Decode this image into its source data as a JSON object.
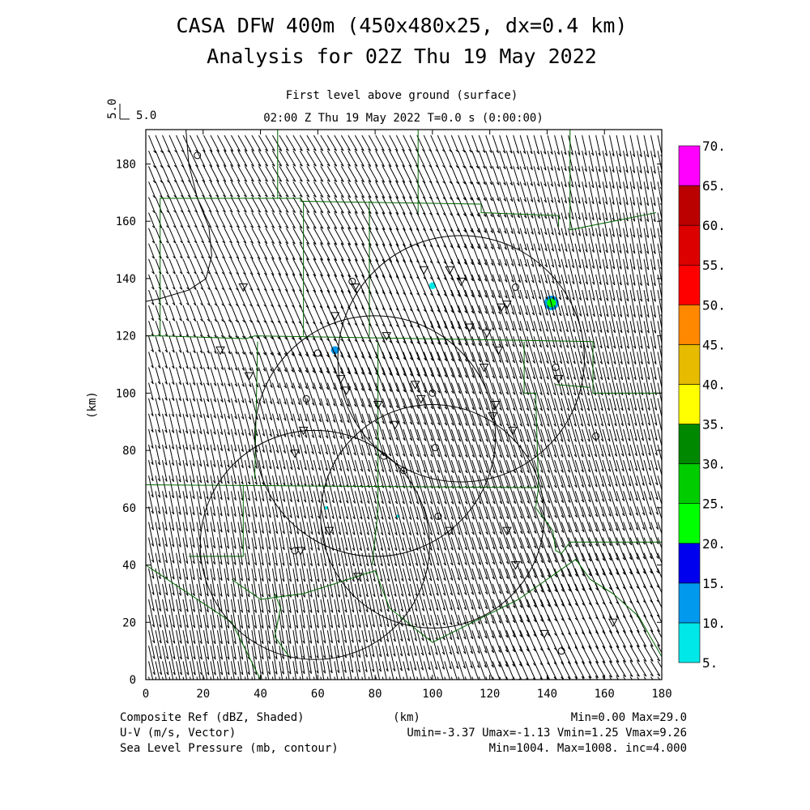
{
  "title": {
    "line1": "CASA DFW 400m (450x480x25, dx=0.4 km)",
    "line2": "Analysis for 02Z Thu 19 May 2022",
    "subtitle": "First level above ground (surface)",
    "time_label": "02:00 Z Thu 19 May 2022   T=0.0 s (0:00:00)"
  },
  "vector_key": {
    "label": "5.0",
    "value": 5.0
  },
  "axes": {
    "xlabel": "(km)",
    "ylabel": "(km)",
    "xlim": [
      0,
      180
    ],
    "ylim": [
      0,
      192
    ],
    "xticks": [
      0,
      20,
      40,
      60,
      80,
      100,
      120,
      140,
      160,
      180
    ],
    "yticks": [
      0,
      20,
      40,
      60,
      80,
      100,
      120,
      140,
      160,
      180
    ]
  },
  "colorbar": {
    "levels": [
      "5.",
      "10.",
      "15.",
      "20.",
      "25.",
      "30.",
      "35.",
      "40.",
      "45.",
      "50.",
      "55.",
      "60.",
      "65.",
      "70."
    ],
    "colors": [
      "#00e8e8",
      "#0099ee",
      "#0000ee",
      "#00ff00",
      "#00cc00",
      "#008800",
      "#ffff00",
      "#e6bb00",
      "#ff8800",
      "#ff0000",
      "#dd0000",
      "#bb0000",
      "#ff00ff"
    ]
  },
  "footer": {
    "left1": "Composite Ref (dBZ, Shaded)",
    "left2": "U-V (m/s, Vector)",
    "left3": "Sea Level Pressure (mb, contour)",
    "center1": "(km)",
    "right1": "Min=0.00 Max=29.0",
    "right2": "Umin=-3.37 Umax=-1.13 Vmin=1.25 Vmax=9.26",
    "right3": "Min=1004. Max=1008. inc=4.000"
  },
  "chart_data": {
    "type": "vector-field",
    "fields": [
      "Composite Ref (dBZ, Shaded)",
      "U-V (m/s, Vector)",
      "Sea Level Pressure (mb, contour)"
    ],
    "reflectivity": {
      "min": 0.0,
      "max": 29.0
    },
    "wind": {
      "umin": -3.37,
      "umax": -1.13,
      "vmin": 1.25,
      "vmax": 9.26,
      "key_speed": 5.0
    },
    "pressure": {
      "min": 1004,
      "max": 1008,
      "inc": 4.0
    },
    "reflectivity_echoes": [
      {
        "x": 141.5,
        "y": 131.5,
        "r": 2.2,
        "dbz": 20
      },
      {
        "x": 100,
        "y": 137.5,
        "r": 1.2,
        "dbz": 8
      },
      {
        "x": 66,
        "y": 115,
        "r": 1.4,
        "dbz": 12
      },
      {
        "x": 63,
        "y": 60,
        "r": 0.6,
        "dbz": 7
      },
      {
        "x": 88,
        "y": 57,
        "r": 0.5,
        "dbz": 7
      }
    ],
    "radar_rings": [
      {
        "x": 110,
        "y": 112,
        "r": 43
      },
      {
        "x": 80,
        "y": 85,
        "r": 42
      },
      {
        "x": 100,
        "y": 57,
        "r": 39
      },
      {
        "x": 59,
        "y": 47,
        "r": 40
      }
    ],
    "triangles": [
      [
        26,
        115
      ],
      [
        34,
        137
      ],
      [
        36,
        106
      ],
      [
        55,
        87
      ],
      [
        52,
        79
      ],
      [
        54,
        45
      ],
      [
        64,
        52
      ],
      [
        66,
        127
      ],
      [
        68,
        105
      ],
      [
        70,
        101
      ],
      [
        73,
        137
      ],
      [
        81,
        96
      ],
      [
        84,
        120
      ],
      [
        87,
        89
      ],
      [
        94,
        103
      ],
      [
        96,
        98
      ],
      [
        97,
        143
      ],
      [
        106,
        143
      ],
      [
        110,
        139
      ],
      [
        113,
        123
      ],
      [
        118,
        109
      ],
      [
        119,
        121
      ],
      [
        121,
        92
      ],
      [
        122,
        96
      ],
      [
        123,
        115
      ],
      [
        124,
        130
      ],
      [
        126,
        131
      ],
      [
        126,
        52
      ],
      [
        128,
        87
      ],
      [
        129,
        40
      ],
      [
        139,
        16
      ],
      [
        144,
        105
      ],
      [
        163,
        20
      ],
      [
        74,
        36
      ],
      [
        106,
        52
      ]
    ],
    "circles": [
      [
        18,
        183
      ],
      [
        72,
        139
      ],
      [
        60,
        114
      ],
      [
        56,
        98
      ],
      [
        83,
        78
      ],
      [
        90,
        73
      ],
      [
        102,
        57
      ],
      [
        101,
        81
      ],
      [
        100,
        100
      ],
      [
        129,
        137
      ],
      [
        143,
        109
      ],
      [
        157,
        85
      ],
      [
        52,
        45
      ],
      [
        145,
        10
      ]
    ]
  }
}
